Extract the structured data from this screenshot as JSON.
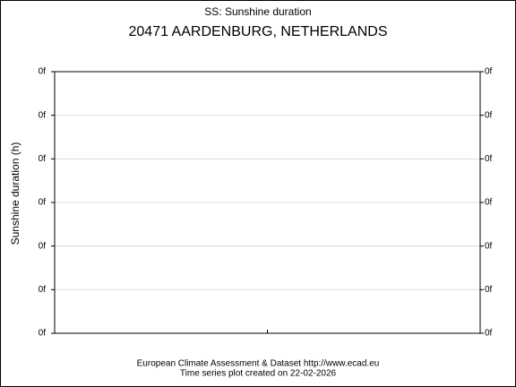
{
  "chart_data": {
    "type": "line",
    "title": "SS: Sunshine duration",
    "subtitle": "20471 AARDENBURG, NETHERLANDS",
    "y_label": "Sunshine duration (h)",
    "ytick_labels": [
      "0f",
      "0f",
      "0f",
      "0f",
      "0f",
      "0f",
      "0f"
    ],
    "footer": [
      "European Climate Assessment & Dataset  http://www.ecad.eu",
      "Time series plot created on 22-02-2026"
    ],
    "grid": true
  }
}
